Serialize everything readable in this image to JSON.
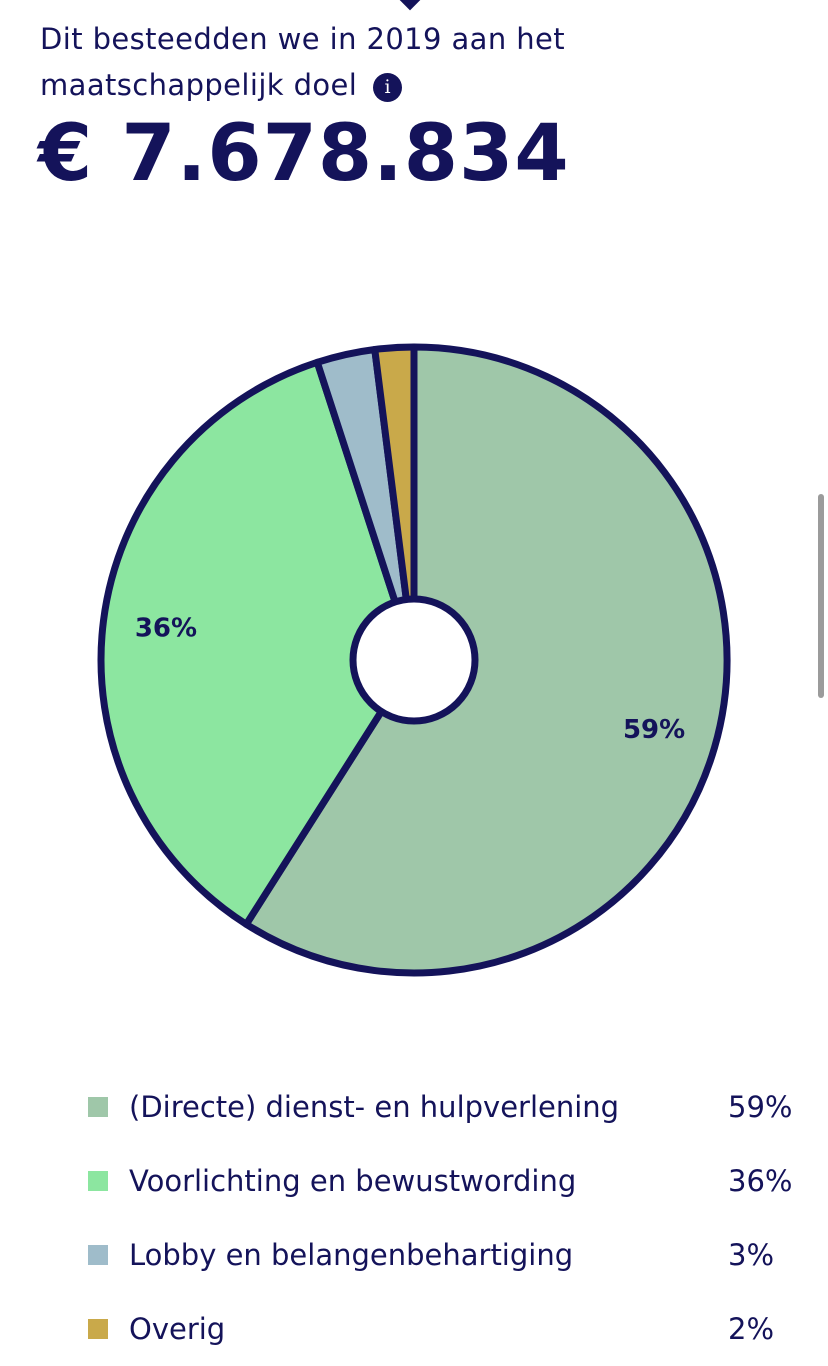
{
  "header": {
    "title": "Dit besteedden we in 2019 aan het maatschappelijk doel",
    "info_icon": "info-icon",
    "info_glyph": "i",
    "amount": "€ 7.678.834"
  },
  "colors": {
    "text": "#14135a",
    "outline": "#14135a",
    "hole": "#ffffff"
  },
  "chart_data": {
    "type": "pie",
    "donut": true,
    "start": "top",
    "direction": "clockwise",
    "slices": [
      {
        "label": "(Directe) dienst- en hulpverlening",
        "value": 59,
        "display": "59%",
        "color": "#9fc7a9",
        "show_label": true
      },
      {
        "label": "Voorlichting en bewustwording",
        "value": 36,
        "display": "36%",
        "color": "#8ce6a0",
        "show_label": true
      },
      {
        "label": "Lobby en belangenbehartiging",
        "value": 3,
        "display": "3%",
        "color": "#9fbcca",
        "show_label": false
      },
      {
        "label": "Overig",
        "value": 2,
        "display": "2%",
        "color": "#c9a94a",
        "show_label": false
      }
    ]
  }
}
